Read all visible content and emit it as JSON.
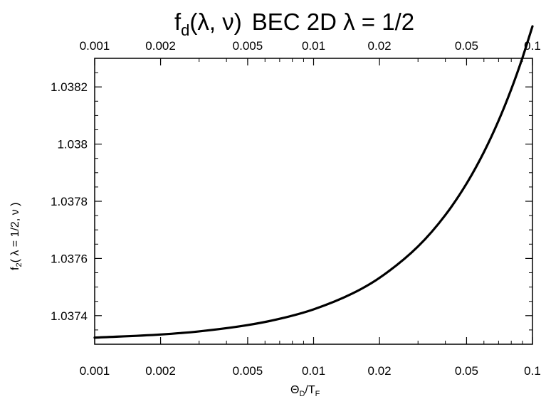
{
  "chart_data": {
    "type": "line",
    "title": "fₐ(λ, ν)  BEC  2D λ = 1/2",
    "title_parts": {
      "f": "f",
      "sub": "d",
      "args": "(λ, ν)",
      "rest": "BEC  2D λ = 1/2"
    },
    "xlabel_parts": {
      "a": "Θ",
      "a_sub": "D",
      "slash": "/T",
      "b_sub": "F"
    },
    "ylabel_parts": {
      "f": "f",
      "sub": "2",
      "rest": "( λ = 1/2,  ν )"
    },
    "x_scale": "log",
    "xlim": [
      0.001,
      0.1
    ],
    "ylim": [
      1.0373,
      1.0383
    ],
    "x_ticks": [
      0.001,
      0.002,
      0.005,
      0.01,
      0.02,
      0.05,
      0.1
    ],
    "x_tick_labels": [
      "0.001",
      "0.002",
      "0.005",
      "0.01",
      "0.02",
      "0.05",
      "0.1"
    ],
    "top_tick_labels": [
      "0.001",
      "0.002",
      "0.005",
      "0.01",
      "0.02",
      "0.05",
      "0.1"
    ],
    "y_ticks": [
      1.0374,
      1.0376,
      1.0378,
      1.038,
      1.0382
    ],
    "y_tick_labels": [
      "1.0374",
      "1.0376",
      "1.0378",
      "1.038",
      "1.0382"
    ],
    "grid": false,
    "line_color": "#000000",
    "series": [
      {
        "x": [
          0.001,
          0.002,
          0.003,
          0.005,
          0.007,
          0.01,
          0.015,
          0.02,
          0.03,
          0.04,
          0.05,
          0.06,
          0.07,
          0.08,
          0.09,
          0.1
        ],
        "y": [
          1.037323,
          1.037334,
          1.037345,
          1.037367,
          1.037389,
          1.037422,
          1.037477,
          1.037532,
          1.037642,
          1.037752,
          1.037862,
          1.037972,
          1.038082,
          1.038192,
          1.038302,
          1.038412
        ]
      }
    ]
  }
}
